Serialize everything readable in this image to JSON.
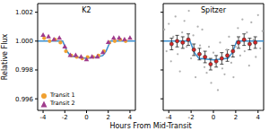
{
  "xlabel": "Hours From Mid-Transit",
  "ylabel": "Relative Flux",
  "chart_data": [
    {
      "type": "scatter",
      "title": "K2",
      "xlim": [
        -4.5,
        4.5
      ],
      "xticks": [
        -4,
        -2,
        0,
        2,
        4
      ],
      "ylim": [
        0.9952,
        1.0026
      ],
      "yticks": [
        0.996,
        0.998,
        {
          "value": 1,
          "label": "1.000"
        },
        1.002
      ],
      "legend": "lower left",
      "series": [
        {
          "name": "Transit 1",
          "type": "scatter",
          "marker": "circle",
          "color": "#f0a030",
          "x": [
            -3.9,
            -3.4,
            -2.9,
            -2.4,
            -1.9,
            -1.4,
            -0.9,
            -0.4,
            0.1,
            0.6,
            1.1,
            1.6,
            2.1,
            2.6,
            3.1,
            3.6
          ],
          "values": [
            1.0002,
            1.0,
            1.0001,
            0.9999,
            0.9993,
            0.999,
            0.9989,
            0.9988,
            0.9989,
            0.9989,
            0.999,
            0.9993,
            0.9999,
            1.0,
            1.0001,
            1.0
          ]
        },
        {
          "name": "Transit 2",
          "type": "scatter",
          "marker": "triangle",
          "color": "#a03c8c",
          "x": [
            -4.0,
            -3.5,
            -3.0,
            -2.5,
            -2.0,
            -1.5,
            -1.0,
            -0.5,
            0.0,
            0.5,
            1.0,
            1.5,
            2.0,
            2.5,
            3.0,
            3.5,
            4.0
          ],
          "values": [
            1.0004,
            1.0003,
            1.0001,
            1.0002,
            0.9996,
            0.999,
            0.999,
            0.9989,
            0.9987,
            0.9989,
            0.9989,
            0.9992,
            0.9999,
            1.0002,
            1.0002,
            1.0001,
            1.0002
          ]
        },
        {
          "type": "line",
          "color": "#3a8fd0",
          "x": [
            -4.5,
            -2.2,
            -1.8,
            -1.5,
            -1.0,
            0.0,
            1.0,
            1.5,
            1.8,
            2.2,
            4.5
          ],
          "values": [
            1.0,
            1.0,
            0.9993,
            0.999,
            0.9989,
            0.9988,
            0.9989,
            0.999,
            0.9993,
            1.0,
            1.0
          ]
        }
      ]
    },
    {
      "type": "scatter",
      "title": "Spitzer",
      "xlim": [
        -4.5,
        4.5
      ],
      "xticks": [
        -4,
        -2,
        0,
        2,
        4
      ],
      "ylim": [
        0.9952,
        1.0026
      ],
      "yticks": [
        0.996,
        0.998,
        {
          "value": 1,
          "label": "1.000"
        },
        1.002
      ],
      "tick_labels": "x",
      "series": [
        {
          "type": "scatter",
          "marker": "circle",
          "color": "#b0b0b0",
          "x": [
            -4.4,
            -4.2,
            -4.0,
            -3.8,
            -3.6,
            -3.4,
            -3.2,
            -3.0,
            -2.8,
            -2.6,
            -2.4,
            -2.2,
            -2.0,
            -1.8,
            -1.6,
            -1.4,
            -1.2,
            -1.0,
            -0.8,
            -0.6,
            -0.4,
            -0.2,
            0.0,
            0.2,
            0.4,
            0.6,
            0.8,
            1.0,
            1.2,
            1.4,
            1.6,
            1.8,
            2.0,
            2.2,
            2.4,
            2.6,
            2.8,
            3.0,
            3.2,
            3.4,
            3.6,
            3.8,
            4.0,
            4.2,
            4.4
          ],
          "values": [
            1.0008,
            0.9993,
            1.0012,
            0.9986,
            1.0003,
            1.0017,
            0.9991,
            0.9979,
            1.0006,
            1.0014,
            0.9996,
            1.0021,
            0.9988,
            1.0004,
            0.9975,
            1.001,
            0.9997,
            1.0008,
            0.9982,
            0.9978,
            0.9996,
            0.9971,
            0.9992,
            0.9984,
            0.9966,
            0.9999,
            0.9981,
            0.9977,
            0.9994,
            1.0003,
            0.9985,
            0.9975,
            0.9996,
            1.0009,
            0.999,
            1.0015,
            0.9993,
            1.0006,
            0.9983,
            1.0013,
            1.0001,
            0.9989,
            1.0018,
            0.9995,
            1.0007
          ]
        },
        {
          "type": "line",
          "color": "#3a8fd0",
          "x": [
            -4.5,
            -2.1,
            -1.7,
            -1.3,
            0.0,
            1.3,
            1.7,
            2.1,
            4.5
          ],
          "values": [
            1.0,
            1.0,
            0.9992,
            0.9988,
            0.9987,
            0.9988,
            0.9992,
            1.0,
            1.0
          ]
        },
        {
          "type": "scatter",
          "marker": "circle",
          "color": "#d62728",
          "x": [
            -3.75,
            -3.25,
            -2.75,
            -2.25,
            -1.75,
            -1.25,
            -0.75,
            -0.25,
            0.25,
            0.75,
            1.25,
            1.75,
            2.25,
            2.75,
            3.25,
            3.75
          ],
          "values": [
            0.9998,
            1.0,
            0.9999,
            1.0001,
            0.9994,
            0.9991,
            0.9989,
            0.9984,
            0.9986,
            0.9988,
            0.999,
            0.9993,
            0.9999,
            1.0001,
            0.9998,
            0.9999
          ],
          "errors": [
            0.0004,
            0.0004,
            0.0004,
            0.0004,
            0.0004,
            0.0004,
            0.0004,
            0.0004,
            0.0004,
            0.0004,
            0.0004,
            0.0004,
            0.0004,
            0.0004,
            0.0004,
            0.0004
          ]
        }
      ]
    }
  ]
}
